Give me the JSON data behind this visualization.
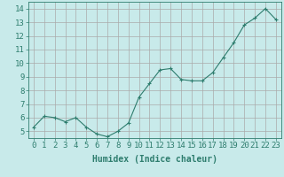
{
  "x": [
    0,
    1,
    2,
    3,
    4,
    5,
    6,
    7,
    8,
    9,
    10,
    11,
    12,
    13,
    14,
    15,
    16,
    17,
    18,
    19,
    20,
    21,
    22,
    23
  ],
  "y": [
    5.3,
    6.1,
    6.0,
    5.7,
    6.0,
    5.3,
    4.8,
    4.6,
    5.0,
    5.6,
    7.5,
    8.5,
    9.5,
    9.6,
    8.8,
    8.7,
    8.7,
    9.3,
    10.4,
    11.5,
    12.8,
    13.3,
    14.0,
    13.2
  ],
  "line_color": "#2e7d6e",
  "marker": "+",
  "marker_size": 3,
  "background_color": "#c8eaea",
  "grid_color": "#aaaaaa",
  "xlabel": "Humidex (Indice chaleur)",
  "ylim": [
    4.5,
    14.5
  ],
  "xlim": [
    -0.5,
    23.5
  ],
  "yticks": [
    5,
    6,
    7,
    8,
    9,
    10,
    11,
    12,
    13,
    14
  ],
  "xticks": [
    0,
    1,
    2,
    3,
    4,
    5,
    6,
    7,
    8,
    9,
    10,
    11,
    12,
    13,
    14,
    15,
    16,
    17,
    18,
    19,
    20,
    21,
    22,
    23
  ],
  "xlabel_fontsize": 7,
  "tick_fontsize": 6.5,
  "axis_color": "#2e7d6e",
  "line_width": 0.8
}
